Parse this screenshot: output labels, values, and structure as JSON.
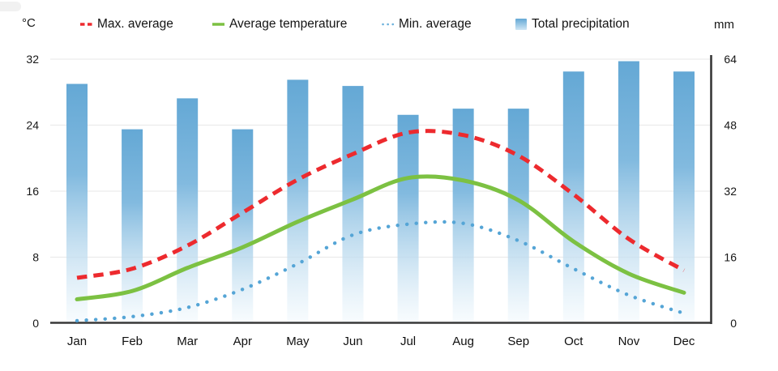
{
  "legend": {
    "items": [
      {
        "label": "Max. average",
        "marker": "dashed-line",
        "color": "#ed2a2e"
      },
      {
        "label": "Average temperature",
        "marker": "solid-line",
        "color": "#7cc142"
      },
      {
        "label": "Min. average",
        "marker": "dotted-line",
        "color": "#55a5d6"
      },
      {
        "label": "Total precipitation",
        "marker": "gradient-swatch",
        "color": "#64a8d5"
      }
    ]
  },
  "axes": {
    "left_unit": "°C",
    "right_unit": "mm",
    "left_ticks": [
      0,
      8,
      16,
      24,
      32
    ],
    "right_ticks": [
      0,
      16,
      32,
      48,
      64
    ]
  },
  "chart_data": {
    "type": "combo",
    "categories": [
      "Jan",
      "Feb",
      "Mar",
      "Apr",
      "May",
      "Jun",
      "Jul",
      "Aug",
      "Sep",
      "Oct",
      "Nov",
      "Dec"
    ],
    "series": [
      {
        "name": "Max. average",
        "type": "line",
        "style": "dashed",
        "color": "#ed2a2e",
        "axis": "left",
        "unit": "°C",
        "values": [
          5.5,
          6.6,
          9.4,
          13.4,
          17.4,
          20.5,
          23.1,
          22.8,
          20.3,
          15.6,
          10.2,
          6.4
        ]
      },
      {
        "name": "Average temperature",
        "type": "line",
        "style": "solid",
        "color": "#7cc142",
        "axis": "left",
        "unit": "°C",
        "values": [
          2.9,
          3.9,
          6.7,
          9.2,
          12.3,
          15.0,
          17.6,
          17.3,
          14.9,
          9.9,
          6.0,
          3.7
        ]
      },
      {
        "name": "Min. average",
        "type": "line",
        "style": "dotted",
        "color": "#55a5d6",
        "axis": "left",
        "unit": "°C",
        "values": [
          0.3,
          0.8,
          1.9,
          4.1,
          7.2,
          10.7,
          12.0,
          12.1,
          10.0,
          6.6,
          3.4,
          1.2
        ]
      },
      {
        "name": "Total precipitation",
        "type": "bar",
        "color": "#64a8d5",
        "color_bottom": "#f2f9fd",
        "axis": "right",
        "unit": "mm",
        "values": [
          58,
          47,
          54.5,
          47,
          59,
          57.5,
          50.5,
          52,
          52,
          61,
          63.5,
          61
        ]
      }
    ],
    "left_axis": {
      "unit": "°C",
      "min": 0,
      "max": 32,
      "ticks": [
        0,
        8,
        16,
        24,
        32
      ]
    },
    "right_axis": {
      "unit": "mm",
      "min": 0,
      "max": 64,
      "ticks": [
        0,
        16,
        32,
        48,
        64
      ]
    },
    "grid": true,
    "legend_position": "top",
    "title": "",
    "xlabel": "",
    "ylabel_left": "°C",
    "ylabel_right": "mm"
  },
  "colors": {
    "grid": "#ececec",
    "axis": "#383838",
    "text": "#161616",
    "background": "#ffffff"
  }
}
